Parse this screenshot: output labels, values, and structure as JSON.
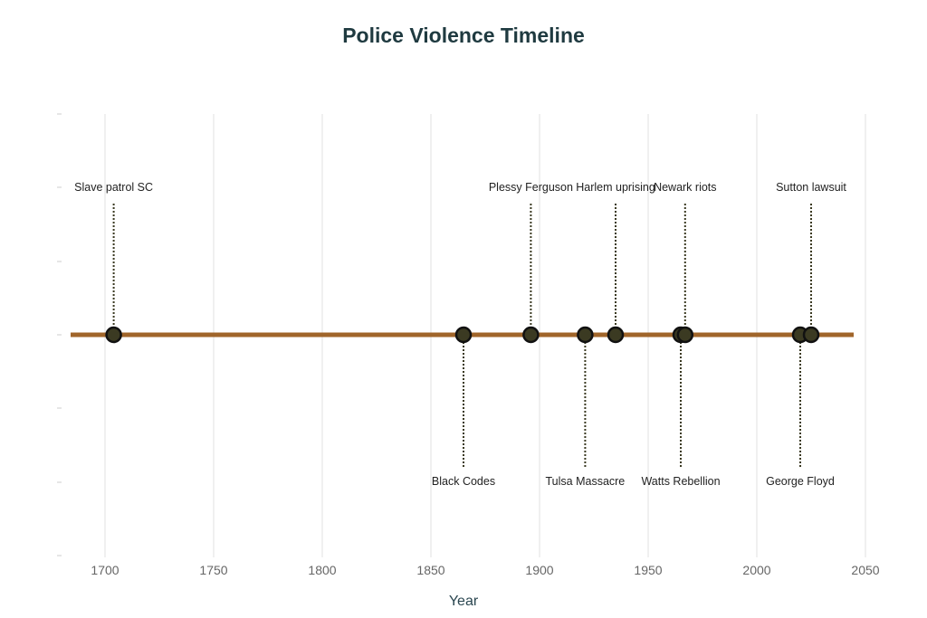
{
  "title": "Police Violence Timeline",
  "colors": {
    "line": "#a0652a",
    "marker_fill": "#3b3a22",
    "marker_stroke": "#111111",
    "title": "#1f3a40",
    "grid": "#e0e0e0"
  },
  "axis": {
    "xlabel": "Year",
    "ticks": [
      "1700",
      "1750",
      "1800",
      "1850",
      "1900",
      "1950",
      "2000",
      "2050"
    ]
  },
  "chart_data": {
    "type": "scatter",
    "title": "Police Violence Timeline",
    "xlabel": "Year",
    "ylabel": "",
    "xlim": [
      1685,
      2055
    ],
    "grid": true,
    "events": [
      {
        "year": 1704,
        "label": "Slave patrol SC",
        "side": "above"
      },
      {
        "year": 1865,
        "label": "Black Codes",
        "side": "below"
      },
      {
        "year": 1896,
        "label": "Plessy Ferguson",
        "side": "above"
      },
      {
        "year": 1921,
        "label": "Tulsa Massacre",
        "side": "below"
      },
      {
        "year": 1935,
        "label": "Harlem uprising",
        "side": "above"
      },
      {
        "year": 1965,
        "label": "Watts Rebellion",
        "side": "below"
      },
      {
        "year": 1967,
        "label": "Newark riots",
        "side": "above"
      },
      {
        "year": 2020,
        "label": "George Floyd",
        "side": "below"
      },
      {
        "year": 2025,
        "label": "Sutton lawsuit",
        "side": "above"
      }
    ]
  }
}
